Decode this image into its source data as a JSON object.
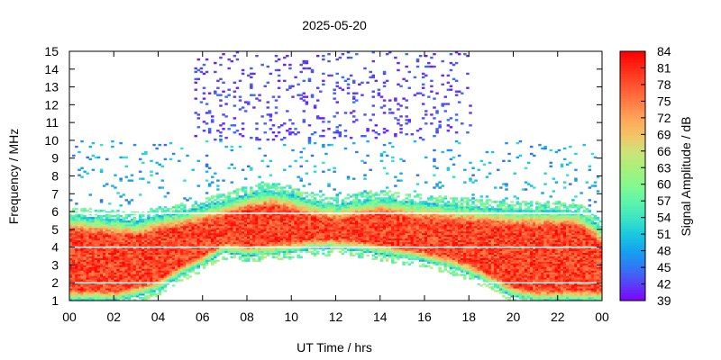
{
  "chart_data": {
    "type": "heatmap",
    "title": "2025-05-20",
    "xlabel": "UT Time / hrs",
    "ylabel": "Frequency / MHz",
    "colorbar_label": "Signal Amplitude / dB",
    "xlim": [
      0,
      24
    ],
    "ylim": [
      1,
      15
    ],
    "zlim": [
      39,
      84
    ],
    "x_ticks": [
      "00",
      "02",
      "04",
      "06",
      "08",
      "10",
      "12",
      "14",
      "16",
      "18",
      "20",
      "22",
      "00"
    ],
    "x_tick_values": [
      0,
      2,
      4,
      6,
      8,
      10,
      12,
      14,
      16,
      18,
      20,
      22,
      24
    ],
    "y_ticks": [
      "1",
      "2",
      "3",
      "4",
      "5",
      "6",
      "7",
      "8",
      "9",
      "10",
      "11",
      "12",
      "13",
      "14",
      "15"
    ],
    "y_tick_values": [
      1,
      2,
      3,
      4,
      5,
      6,
      7,
      8,
      9,
      10,
      11,
      12,
      13,
      14,
      15
    ],
    "colorbar_ticks": [
      "39",
      "42",
      "45",
      "48",
      "51",
      "54",
      "57",
      "60",
      "63",
      "66",
      "69",
      "72",
      "75",
      "78",
      "81",
      "84"
    ],
    "colorbar_tick_values": [
      39,
      42,
      45,
      48,
      51,
      54,
      57,
      60,
      63,
      66,
      69,
      72,
      75,
      78,
      81,
      84
    ],
    "colormap": [
      "#8000ff",
      "#5a3ff6",
      "#3377f5",
      "#14a2ef",
      "#18c9df",
      "#3de5c4",
      "#5ff5a8",
      "#86f98e",
      "#a8f07a",
      "#cfe27a",
      "#f4c266",
      "#ffa45a",
      "#ff7a44",
      "#ff5230",
      "#ff2a18",
      "#ff0000"
    ],
    "grid": false,
    "profile_hours": [
      0,
      1,
      2,
      3,
      4,
      5,
      6,
      7,
      8,
      9,
      10,
      11,
      12,
      13,
      14,
      15,
      16,
      17,
      18,
      19,
      20,
      21,
      22,
      23,
      24
    ],
    "top_mhz": [
      5.8,
      5.7,
      5.6,
      5.5,
      5.8,
      6.0,
      6.3,
      6.6,
      7.0,
      7.2,
      7.0,
      6.6,
      6.4,
      6.6,
      6.8,
      6.6,
      6.5,
      6.4,
      6.3,
      6.2,
      6.1,
      6.1,
      6.1,
      6.0,
      5.1
    ],
    "bottom_mhz": [
      1.0,
      1.0,
      1.0,
      1.2,
      1.6,
      2.4,
      3.0,
      3.7,
      3.5,
      3.6,
      3.7,
      3.9,
      3.9,
      3.8,
      3.6,
      3.4,
      3.2,
      2.9,
      2.5,
      1.9,
      1.2,
      1.0,
      1.0,
      1.0,
      1.0
    ],
    "sporadic_band": {
      "hours": [
        5.6,
        18.0
      ],
      "mhz": [
        10,
        15
      ],
      "level_db": 40
    }
  }
}
